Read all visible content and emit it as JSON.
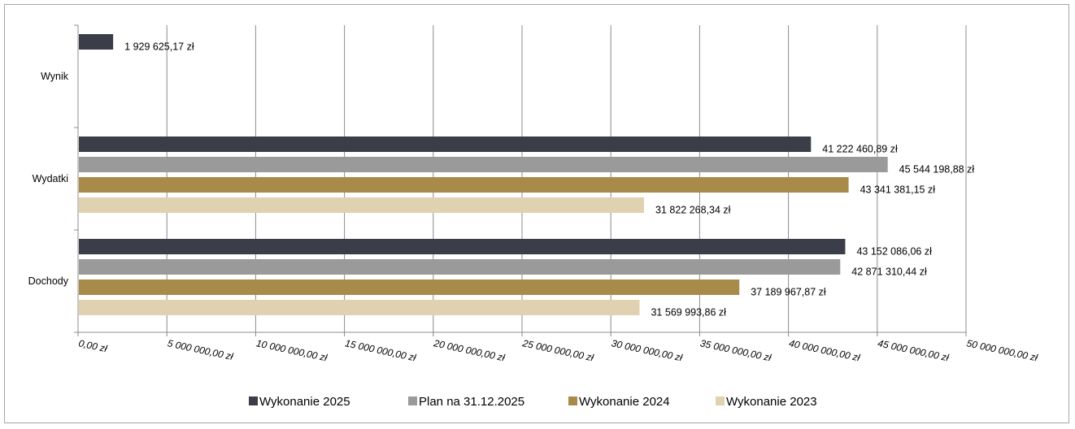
{
  "chart_data": {
    "type": "bar",
    "orientation": "horizontal",
    "categories": [
      "Wynik",
      "Wydatki",
      "Dochody"
    ],
    "series": [
      {
        "name": "Wykonanie 2025",
        "color": "#3b3d48",
        "values": [
          1929625.17,
          41222460.89,
          43152086.06
        ],
        "labels": [
          "1 929 625,17 zł",
          "41 222 460,89 zł",
          "43 152 086,06 zł"
        ]
      },
      {
        "name": "Plan na 31.12.2025",
        "color": "#9a9a9a",
        "values": [
          null,
          45544198.88,
          42871310.44
        ],
        "labels": [
          "",
          "45 544 198,88 zł",
          "42 871 310,44 zł"
        ]
      },
      {
        "name": "Wykonanie 2024",
        "color": "#a88a4a",
        "values": [
          null,
          43341381.15,
          37189967.87
        ],
        "labels": [
          "",
          "43 341 381,15 zł",
          "37 189 967,87 zł"
        ]
      },
      {
        "name": "Wykonanie 2023",
        "color": "#e0d1b0",
        "values": [
          null,
          31822268.34,
          31569993.86
        ],
        "labels": [
          "",
          "31 822 268,34 zł",
          "31 569 993,86 zł"
        ]
      }
    ],
    "xlim": [
      0,
      50000000
    ],
    "xticks": [
      0,
      5000000,
      10000000,
      15000000,
      20000000,
      25000000,
      30000000,
      35000000,
      40000000,
      45000000,
      50000000
    ],
    "xtick_labels": [
      "0,00 zł",
      "5 000 000,00 zł",
      "10 000 000,00 zł",
      "15 000 000,00 zł",
      "20 000 000,00 zł",
      "25 000 000,00 zł",
      "30 000 000,00 zł",
      "35 000 000,00 zł",
      "40 000 000,00 zł",
      "45 000 000,00 zł",
      "50 000 000,00 zł"
    ],
    "grid": true,
    "legend_position": "bottom",
    "gridline_color": "#8c8c8c",
    "axis_color": "#8c8c8c"
  }
}
